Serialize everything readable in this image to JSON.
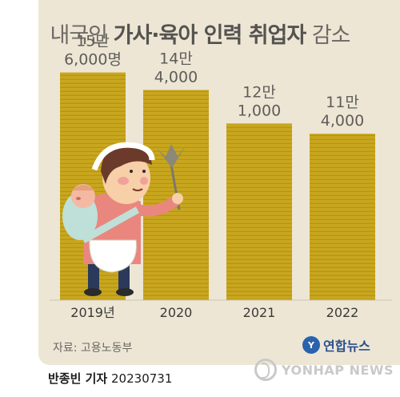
{
  "title": {
    "part1": "내국인 ",
    "highlight": "가사·육아 인력 취업자",
    "part2": " 감소"
  },
  "chart_data": {
    "type": "bar",
    "title": "내국인 가사·육아 인력 취업자 감소",
    "categories": [
      "2019년",
      "2020",
      "2021",
      "2022"
    ],
    "values": [
      156000,
      144000,
      121000,
      114000
    ],
    "value_labels": [
      [
        "15만",
        "6,000명"
      ],
      [
        "14만",
        "4,000"
      ],
      [
        "12만",
        "1,000"
      ],
      [
        "11만",
        "4,000"
      ]
    ],
    "ylim": [
      0,
      170000
    ],
    "bar_color": "#c9a71e",
    "bar_stripe_color": "#b79516",
    "grid": false,
    "legend": "none"
  },
  "source": "자료: 고용노동부",
  "logo": {
    "mark": "Y",
    "text": "연합뉴스"
  },
  "byline": {
    "reporter": "반종빈 기자",
    "date": "20230731"
  },
  "watermark": "YONHAP NEWS",
  "illustration": "woman-with-baby-and-duster",
  "colors": {
    "background": "#ede6d5",
    "text": "#5f5d59",
    "bar": "#c9a71e",
    "logo": "#2a63ad"
  }
}
